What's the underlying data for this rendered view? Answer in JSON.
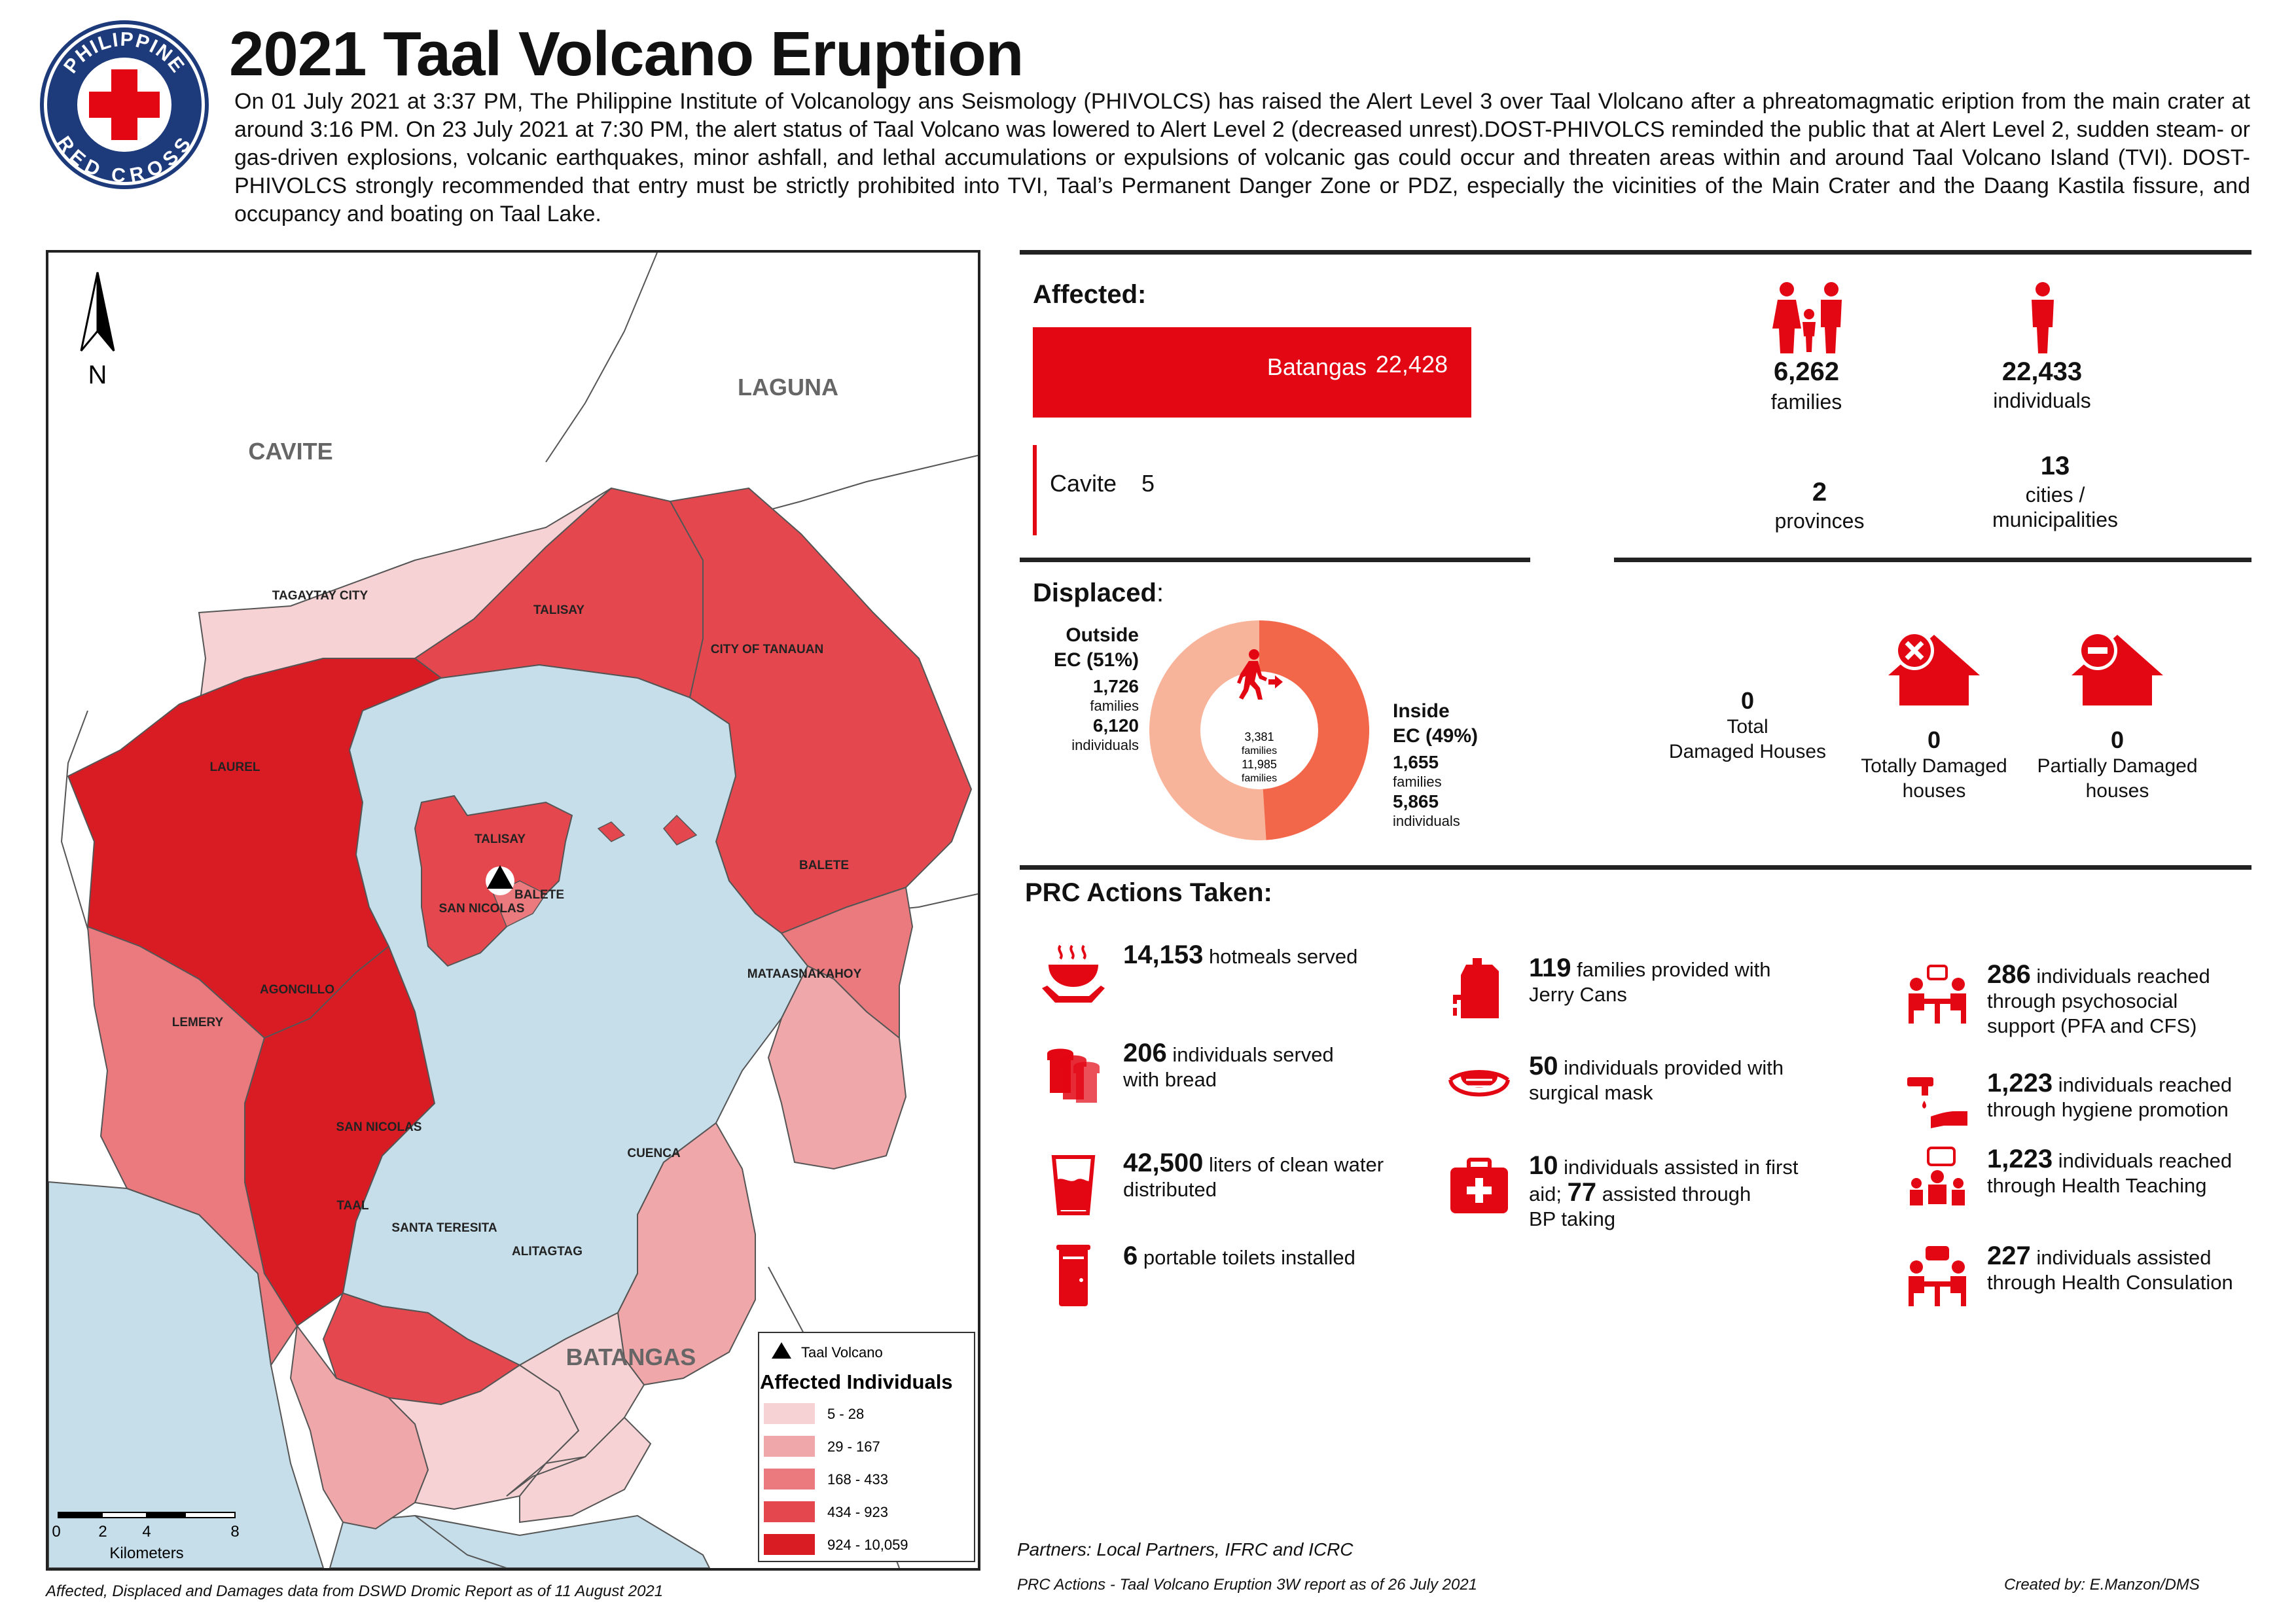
{
  "header": {
    "title": "2021 Taal Volcano Eruption",
    "logo_text_top": "PHILIPPINE",
    "logo_text_bottom": "RED CROSS",
    "intro": "On 01 July 2021 at 3:37 PM, The Philippine Institute of Volcanology ans Seismology (PHIVOLCS) has raised the Alert Level 3 over Taal Vlolcano after a phreatomagmatic eription from the main crater at around 3:16 PM. On 23 July 2021 at 7:30 PM, the alert status of Taal Volcano was lowered to Alert Level 2 (decreased unrest).DOST-PHIVOLCS reminded the public that at Alert Level 2, sudden steam- or gas-driven explosions, volcanic earthquakes, minor ashfall, and lethal accumulations or expulsions of volcanic gas could occur and threaten areas within and around Taal Volcano Island (TVI). DOST-PHIVOLCS strongly recommended that entry must be strictly prohibited into TVI, Taal’s Permanent Danger Zone or PDZ, especially the vicinities of the Main Crater and the Daang Kastila fissure, and occupancy and boating on Taal Lake."
  },
  "map": {
    "north": "N",
    "provinces": {
      "cavite": "CAVITE",
      "laguna": "LAGUNA",
      "batangas": "BATANGAS"
    },
    "areas": [
      {
        "name": "TAGAYTAY CITY",
        "class": 1
      },
      {
        "name": "TALISAY",
        "class": 4
      },
      {
        "name": "CITY OF TANAUAN",
        "class": 4
      },
      {
        "name": "LAUREL",
        "class": 5
      },
      {
        "name": "TALISAY",
        "class": 4
      },
      {
        "name": "BALETE",
        "class": 4
      },
      {
        "name": "SAN NICOLAS",
        "class": 4
      },
      {
        "name": "BALETE",
        "class": 3
      },
      {
        "name": "MATAASNAKAHOY",
        "class": 2
      },
      {
        "name": "AGONCILLO",
        "class": 5
      },
      {
        "name": "LEMERY",
        "class": 3
      },
      {
        "name": "SAN NICOLAS",
        "class": 4
      },
      {
        "name": "TAAL",
        "class": 2
      },
      {
        "name": "SANTA TERESITA",
        "class": 1
      },
      {
        "name": "CUENCA",
        "class": 2
      },
      {
        "name": "ALITAGTAG",
        "class": 1
      }
    ],
    "legend": {
      "volcano": "Taal Volcano",
      "title": "Affected Individuals",
      "classes": [
        {
          "label": "5 - 28",
          "color": "#f6d2d4"
        },
        {
          "label": "29 - 167",
          "color": "#f0a7aa"
        },
        {
          "label": "168 - 433",
          "color": "#ea7a7e"
        },
        {
          "label": "434 - 923",
          "color": "#e4484e"
        },
        {
          "label": "924 - 10,059",
          "color": "#d91c24"
        }
      ]
    },
    "scale": {
      "ticks": [
        "0",
        "2",
        "4",
        "8"
      ],
      "unit": "Kilometers"
    },
    "colors": {
      "lake": "#c5deea",
      "border": "#555555"
    }
  },
  "affected": {
    "heading": "Affected:",
    "bars": [
      {
        "name": "Batangas",
        "value": 22428,
        "value_label": "22,428"
      },
      {
        "name": "Cavite",
        "value": 5,
        "value_label": "5"
      }
    ],
    "families": {
      "value": "6,262",
      "label": "families"
    },
    "individuals": {
      "value": "22,433",
      "label": "individuals"
    },
    "provinces": {
      "value": "2",
      "label": "provinces"
    },
    "cities": {
      "value": "13",
      "label_1": "cities /",
      "label_2": "municipalities"
    }
  },
  "displaced": {
    "heading": "Displaced",
    "heading_suffix": ":",
    "outside": {
      "label_1": "Outside",
      "label_2": "EC (51%)",
      "percent": 51,
      "families": "1,726",
      "families_label": "families",
      "individuals": "6,120",
      "individuals_label": "individuals",
      "color": "#f8b49a"
    },
    "inside": {
      "label_1": "Inside",
      "label_2": "EC (49%)",
      "percent": 49,
      "families": "1,655",
      "families_label": "families",
      "individuals": "5,865",
      "individuals_label": "individuals",
      "color": "#f26649"
    },
    "center": {
      "families": "3,381",
      "families_label": "families",
      "individuals": "11,985",
      "individuals_label": "families"
    }
  },
  "damaged": {
    "total": {
      "value": "0",
      "label_1": "Total",
      "label_2": "Damaged Houses"
    },
    "totally": {
      "value": "0",
      "label_1": "Totally Damaged",
      "label_2": "houses"
    },
    "partially": {
      "value": "0",
      "label_1": "Partially Damaged",
      "label_2": "houses"
    }
  },
  "actions": {
    "heading": "PRC Actions Taken:",
    "items": [
      {
        "icon": "hotmeal-icon",
        "num": "14,153",
        "text": " hotmeals served",
        "line2": ""
      },
      {
        "icon": "bread-icon",
        "num": "206",
        "text": " individuals served",
        "line2": "with bread"
      },
      {
        "icon": "water-glass-icon",
        "num": "42,500",
        "text": " liters of clean water",
        "line2": "distributed"
      },
      {
        "icon": "toilet-icon",
        "num": "6",
        "text": " portable toilets installed",
        "line2": ""
      },
      {
        "icon": "jerry-can-icon",
        "num": "119",
        "text": " families provided with",
        "line2": "Jerry Cans"
      },
      {
        "icon": "mask-icon",
        "num": "50",
        "text": " individuals provided with",
        "line2": "surgical mask"
      },
      {
        "icon": "first-aid-icon",
        "num": "10",
        "text": " individuals assisted in first",
        "line2a": "aid; ",
        "num2": "77",
        "line2b": " assisted through",
        "line3": "BP taking"
      },
      {
        "icon": "psychosocial-icon",
        "num": "286",
        "text": " individuals reached",
        "line2": "through psychosocial",
        "line3": "support (PFA and CFS)"
      },
      {
        "icon": "hygiene-icon",
        "num": "1,223",
        "text": " individuals reached",
        "line2": "through hygiene promotion"
      },
      {
        "icon": "health-teaching-icon",
        "num": "1,223",
        "text": " individuals reached",
        "line2": "through Health Teaching"
      },
      {
        "icon": "consultation-icon",
        "num": "227",
        "text": " individuals assisted",
        "line2": "through Health Consulation"
      }
    ]
  },
  "footer": {
    "partners": "Partners: Local Partners, IFRC and ICRC",
    "source_left": "Affected, Displaced and Damages data from DSWD Dromic Report as of 11 August 2021",
    "source_right": "PRC Actions - Taal Volcano Eruption 3W report as of 26 July 2021",
    "credit": "Created by: E.Manzon/DMS"
  },
  "colors": {
    "accent": "#e30613",
    "rule": "#222222"
  }
}
